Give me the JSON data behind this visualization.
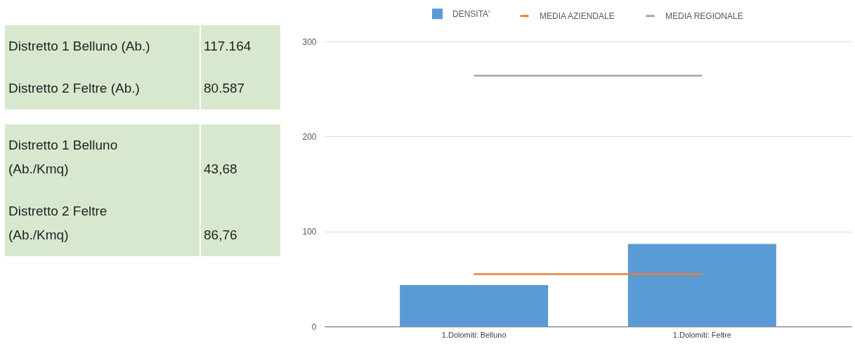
{
  "chart_data": [
    {
      "type": "other",
      "annotations": [
        "Distretto 1 Belluno (Ab.)",
        "117.164",
        "Distretto 2 Feltre (Ab.)",
        "80.587",
        "Distretto 1 Belluno (Ab./Kmq)",
        "43,68",
        "Distretto 2 Feltre (Ab./Kmq)",
        "86,76"
      ]
    },
    {
      "type": "bar",
      "categories": [
        "1.Dolomiti: Belluno",
        "1.Dolomiti: Feltre"
      ],
      "series": [
        {
          "name": "DENSITA'",
          "type": "bar",
          "color": "#5b9bd5",
          "values": [
            43.68,
            86.76
          ]
        },
        {
          "name": "MEDIA AZIENDALE",
          "type": "line",
          "color": "#ed7d31",
          "values": [
            55,
            55
          ]
        },
        {
          "name": "MEDIA REGIONALE",
          "type": "line",
          "color": "#a5a5a5",
          "values": [
            264,
            264
          ]
        }
      ],
      "ylim": [
        0,
        300
      ],
      "yticks": [
        0,
        100,
        200,
        300
      ],
      "grid": "y",
      "legend": "top"
    }
  ]
}
